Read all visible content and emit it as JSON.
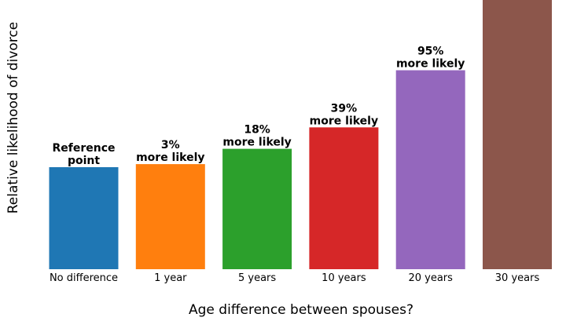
{
  "chart_data": {
    "type": "bar",
    "title": "",
    "xlabel": "Age difference between spouses?",
    "ylabel": "Relative likelihood of divorce",
    "categories": [
      "No difference",
      "1 year",
      "5 years",
      "10 years",
      "20 years",
      "30 years"
    ],
    "values": [
      1.0,
      1.03,
      1.18,
      1.39,
      1.95,
      2.72
    ],
    "ylim": [
      0,
      2.6
    ],
    "bar_labels": [
      [
        "Reference",
        "point"
      ],
      [
        "3%",
        "more likely"
      ],
      [
        "18%",
        "more likely"
      ],
      [
        "39%",
        "more likely"
      ],
      [
        "95%",
        "more likely"
      ],
      []
    ],
    "colors": [
      "#1f77b4",
      "#ff7f0e",
      "#2ca02c",
      "#d62728",
      "#9467bd",
      "#8c564b"
    ],
    "grid": false,
    "legend": "none"
  }
}
